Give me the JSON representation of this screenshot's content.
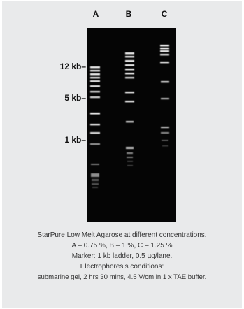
{
  "lanes": [
    "A",
    "B",
    "C"
  ],
  "markers": [
    {
      "label": "12 kb–"
    },
    {
      "label": "5 kb–"
    },
    {
      "label": "1 kb–"
    }
  ],
  "caption": {
    "line1": "StarPure Low Melt Agarose at different concentrations.",
    "line2": "A – 0.75 %, B – 1 %, C – 1.25 %",
    "line3": "Marker: 1 kb ladder, 0.5 µg/lane.",
    "line4": "Electrophoresis conditions:",
    "line5": "submarine gel, 2 hrs 30 mins, 4.5 V/cm in 1 x TAE buffer."
  },
  "colors": {
    "gel": "#050505",
    "band": "#ffffff",
    "background": "#e9eaeb"
  }
}
